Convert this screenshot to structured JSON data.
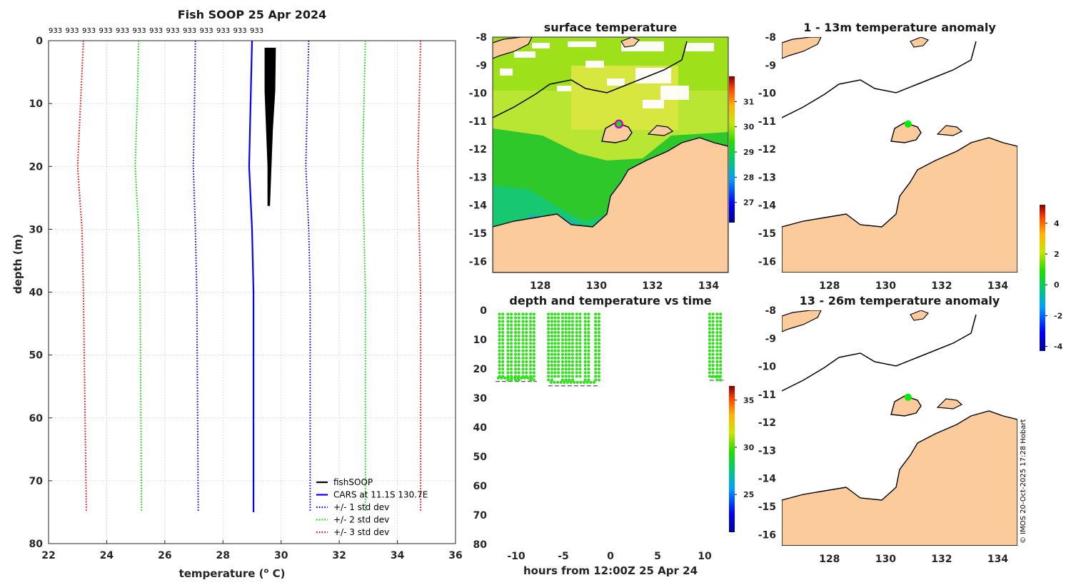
{
  "chart_data": [
    {
      "id": "profile",
      "type": "line",
      "title": "Fish SOOP 25 Apr 2024",
      "top_labels": [
        "933",
        "933",
        "933",
        "933",
        "933",
        "933",
        "933",
        "933",
        "933",
        "933",
        "933",
        "933",
        "933"
      ],
      "xlabel": "temperature (",
      "xlabel_sup": "o",
      "xlabel_tail": " C)",
      "ylabel": "depth (m)",
      "xlim": [
        22,
        36
      ],
      "ylim": [
        0,
        80
      ],
      "xticks": [
        22,
        24,
        26,
        28,
        30,
        32,
        34,
        36
      ],
      "yticks": [
        0,
        10,
        20,
        30,
        40,
        50,
        60,
        70,
        80
      ],
      "series": [
        {
          "name": "CARS at 11.1S 130.7E",
          "color": "#0000ff",
          "style": "solid",
          "points": [
            [
              29.0,
              0
            ],
            [
              28.95,
              10
            ],
            [
              28.9,
              20
            ],
            [
              29.0,
              30
            ],
            [
              29.05,
              40
            ],
            [
              29.05,
              75
            ]
          ]
        },
        {
          "name": "+/- 1 std dev",
          "color": "#0000ff",
          "style": "dotted",
          "points": [
            [
              27.05,
              0
            ],
            [
              27.02,
              10
            ],
            [
              26.98,
              20
            ],
            [
              27.05,
              30
            ],
            [
              27.1,
              40
            ],
            [
              27.15,
              75
            ]
          ]
        },
        {
          "name": "+/- 1 std dev upper",
          "color": "#0000ff",
          "style": "dotted",
          "legend": false,
          "points": [
            [
              30.95,
              0
            ],
            [
              30.9,
              10
            ],
            [
              30.85,
              20
            ],
            [
              30.95,
              30
            ],
            [
              31.0,
              40
            ],
            [
              31.0,
              75
            ]
          ]
        },
        {
          "name": "+/- 2 std dev",
          "color": "#00dd00",
          "style": "dotted",
          "points": [
            [
              25.1,
              0
            ],
            [
              25.05,
              10
            ],
            [
              24.98,
              20
            ],
            [
              25.1,
              30
            ],
            [
              25.15,
              40
            ],
            [
              25.2,
              75
            ]
          ]
        },
        {
          "name": "+/- 2 std dev upper",
          "color": "#00dd00",
          "style": "dotted",
          "legend": false,
          "points": [
            [
              32.9,
              0
            ],
            [
              32.85,
              10
            ],
            [
              32.8,
              20
            ],
            [
              32.85,
              30
            ],
            [
              32.9,
              40
            ],
            [
              32.9,
              75
            ]
          ]
        },
        {
          "name": "+/- 3 std dev",
          "color": "#ff0000",
          "style": "dotted",
          "points": [
            [
              23.2,
              0
            ],
            [
              23.1,
              10
            ],
            [
              23.0,
              20
            ],
            [
              23.15,
              30
            ],
            [
              23.2,
              40
            ],
            [
              23.3,
              75
            ]
          ]
        },
        {
          "name": "+/- 3 std dev upper",
          "color": "#ff0000",
          "style": "dotted",
          "legend": false,
          "points": [
            [
              34.8,
              0
            ],
            [
              34.75,
              10
            ],
            [
              34.7,
              20
            ],
            [
              34.75,
              30
            ],
            [
              34.8,
              40
            ],
            [
              34.8,
              75
            ]
          ]
        },
        {
          "name": "fishSOOP",
          "color": "#000000",
          "style": "band",
          "points_left": [
            [
              29.45,
              1.2
            ],
            [
              29.45,
              8
            ],
            [
              29.5,
              14
            ],
            [
              29.55,
              20
            ],
            [
              29.55,
              26.2
            ]
          ],
          "points_right": [
            [
              29.8,
              1.2
            ],
            [
              29.78,
              8
            ],
            [
              29.7,
              14
            ],
            [
              29.65,
              20
            ],
            [
              29.6,
              26.2
            ]
          ]
        }
      ],
      "legend_order": [
        "fishSOOP",
        "CARS at 11.1S 130.7E",
        "+/- 1 std dev",
        "+/- 2 std dev",
        "+/- 3 std dev"
      ]
    },
    {
      "id": "sst_map",
      "type": "heatmap",
      "title": "surface temperature",
      "xticks": [
        128,
        130,
        132,
        134
      ],
      "yticks": [
        -8,
        -9,
        -10,
        -11,
        -12,
        -13,
        -14,
        -15,
        -16
      ],
      "xlim": [
        126.3,
        134.7
      ],
      "ylim": [
        -16.4,
        -8
      ],
      "colorbar": {
        "min": 26.2,
        "max": 32,
        "ticks": [
          27,
          28,
          29,
          30,
          31
        ]
      },
      "marker": {
        "lon": 130.8,
        "lat": -11.1
      }
    },
    {
      "id": "depth_time",
      "type": "scatter",
      "title": "depth and temperature vs time",
      "xlabel": "hours from 12:00Z 25 Apr 24",
      "xlim": [
        -12.5,
        12.5
      ],
      "ylim": [
        80,
        0
      ],
      "xticks": [
        -10,
        -5,
        0,
        5,
        10
      ],
      "yticks": [
        0,
        10,
        20,
        30,
        40,
        50,
        60,
        70,
        80
      ],
      "colorbar": {
        "min": 21,
        "max": 36.5,
        "ticks": [
          25,
          30,
          35
        ]
      },
      "casts": [
        -11.6,
        -10.7,
        -9.9,
        -9.1,
        -8.3,
        -6.4,
        -5.7,
        -4.9,
        -4.2,
        -3.4,
        -2.5,
        -1.4,
        10.7,
        11.5
      ],
      "bottom_segments": [
        [
          -12.2,
          -7.8,
          24.3
        ],
        [
          -6.6,
          -1.2,
          25.8
        ],
        [
          10.5,
          12.0,
          23.9
        ]
      ]
    },
    {
      "id": "anom_1_13",
      "type": "heatmap",
      "title": "1 - 13m temperature anomaly",
      "xticks": [
        128,
        130,
        132,
        134
      ],
      "yticks": [
        -8,
        -9,
        -10,
        -11,
        -12,
        -13,
        -14,
        -15,
        -16
      ],
      "marker": {
        "lon": 130.8,
        "lat": -11.1
      }
    },
    {
      "id": "anom_13_26",
      "type": "heatmap",
      "title": "13 - 26m temperature anomaly",
      "xticks": [
        128,
        130,
        132,
        134
      ],
      "yticks": [
        -8,
        -9,
        -10,
        -11,
        -12,
        -13,
        -14,
        -15,
        -16
      ],
      "marker": {
        "lon": 130.8,
        "lat": -11.1
      },
      "colorbar": {
        "min": -4.3,
        "max": 5.2,
        "ticks": [
          -4,
          -2,
          0,
          2,
          4
        ]
      }
    }
  ],
  "credit": "© IMOS 20-Oct-2025 17:28 Hobart",
  "colors": {
    "land": "#fbcb9b",
    "coast": "#000000",
    "marker": "#00ee00"
  }
}
